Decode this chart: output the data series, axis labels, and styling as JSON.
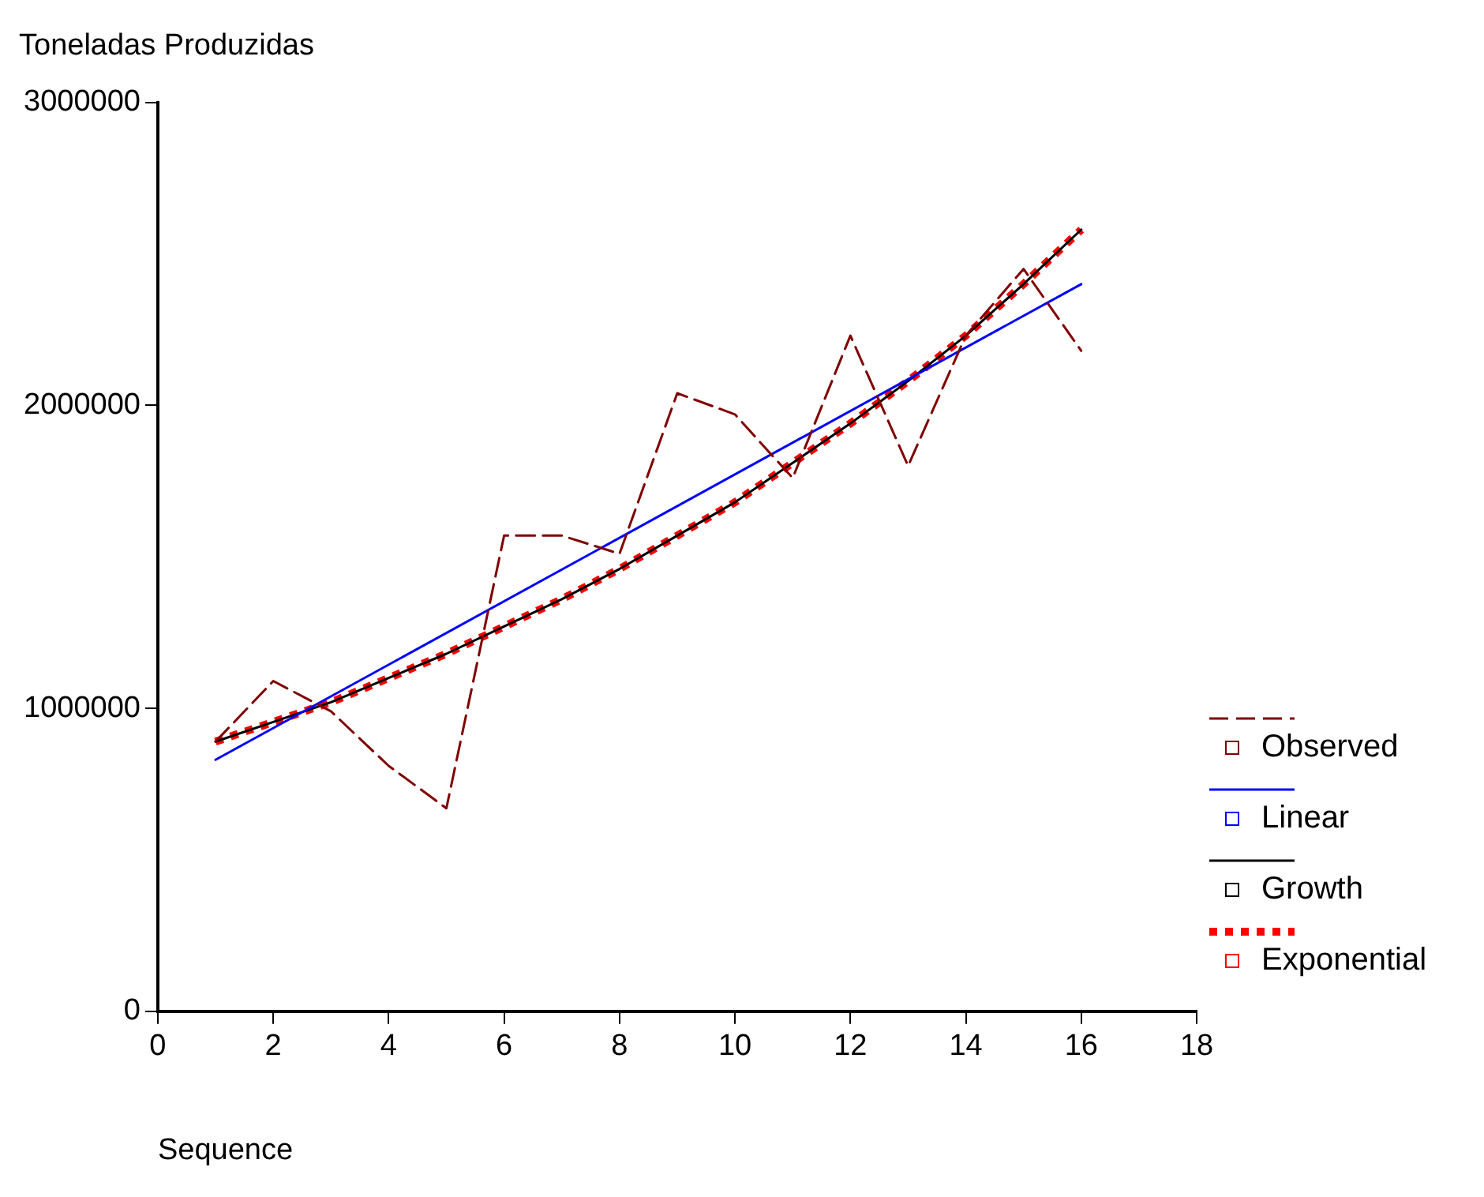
{
  "chart_data": {
    "type": "line",
    "title": "Toneladas Produzidas",
    "xlabel": "Sequence",
    "x": [
      1,
      2,
      3,
      4,
      5,
      6,
      7,
      8,
      9,
      10,
      11,
      12,
      13,
      14,
      15,
      16
    ],
    "xlim": [
      0,
      18
    ],
    "xticks": [
      0,
      2,
      4,
      6,
      8,
      10,
      12,
      14,
      16,
      18
    ],
    "ylim": [
      0,
      3000000
    ],
    "yticks": [
      0,
      1000000,
      2000000,
      3000000
    ],
    "grid": false,
    "legend": "right",
    "marker": "none",
    "series": [
      {
        "name": "Observed",
        "color": "#800000",
        "line_style": "dashed",
        "values": [
          890000,
          1090000,
          990000,
          810000,
          670000,
          1570000,
          1570000,
          1510000,
          2040000,
          1970000,
          1760000,
          2230000,
          1800000,
          2230000,
          2450000,
          2180000
        ]
      },
      {
        "name": "Linear",
        "color": "#0000ff",
        "line_style": "solid",
        "x": [
          1,
          16
        ],
        "values": [
          830000,
          2400000
        ]
      },
      {
        "name": "Growth",
        "color": "#000000",
        "line_style": "solid",
        "values": [
          890000,
          955000,
          1020000,
          1100000,
          1180000,
          1270000,
          1360000,
          1460000,
          1570000,
          1680000,
          1810000,
          1940000,
          2080000,
          2230000,
          2400000,
          2580000
        ]
      },
      {
        "name": "Exponential",
        "color": "#ff0000",
        "line_style": "dotted",
        "values": [
          890000,
          955000,
          1020000,
          1100000,
          1180000,
          1270000,
          1360000,
          1460000,
          1570000,
          1680000,
          1810000,
          1940000,
          2080000,
          2230000,
          2400000,
          2580000
        ]
      }
    ]
  }
}
